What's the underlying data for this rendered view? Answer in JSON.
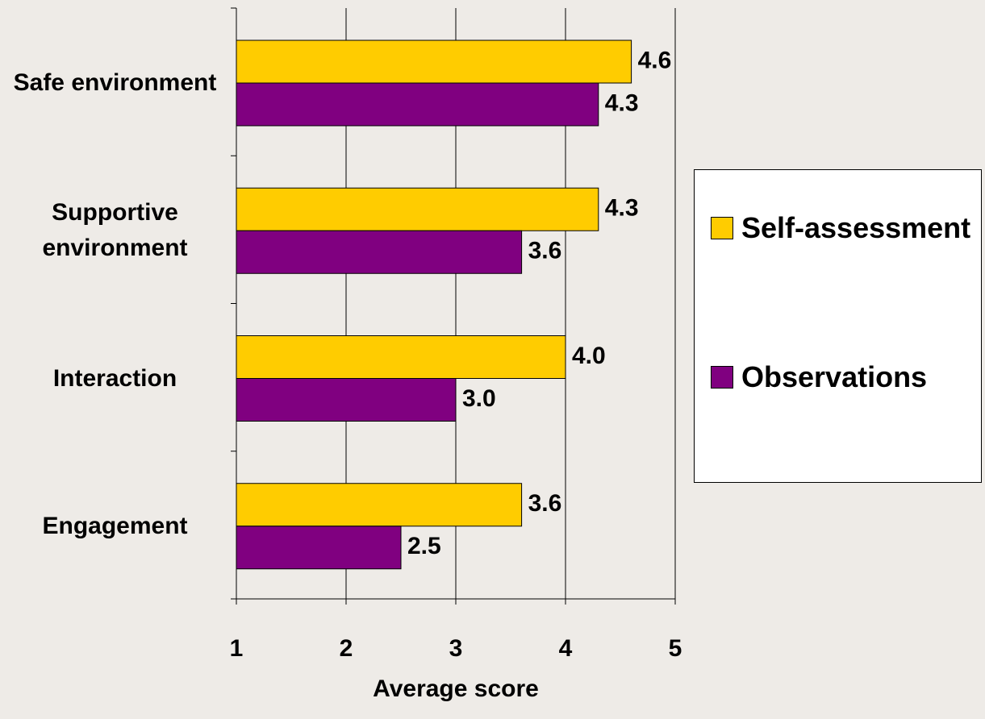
{
  "chart_data": {
    "type": "hbar",
    "categories": [
      "Safe environment",
      "Supportive environment",
      "Interaction",
      "Engagement"
    ],
    "series": [
      {
        "name": "Self-assessment",
        "color": "#ffcc00",
        "values": [
          4.6,
          4.3,
          4.0,
          3.6
        ],
        "value_labels": [
          "4.6",
          "4.3",
          "4.0",
          "3.6"
        ]
      },
      {
        "name": "Observations",
        "color": "#800080",
        "values": [
          4.3,
          3.6,
          3.0,
          2.5
        ],
        "value_labels": [
          "4.3",
          "3.6",
          "3.0",
          "2.5"
        ]
      }
    ],
    "xlabel": "Average score",
    "xlim": [
      1,
      5
    ],
    "xticks": [
      1,
      2,
      3,
      4,
      5
    ],
    "grid": true,
    "legend": "right"
  }
}
